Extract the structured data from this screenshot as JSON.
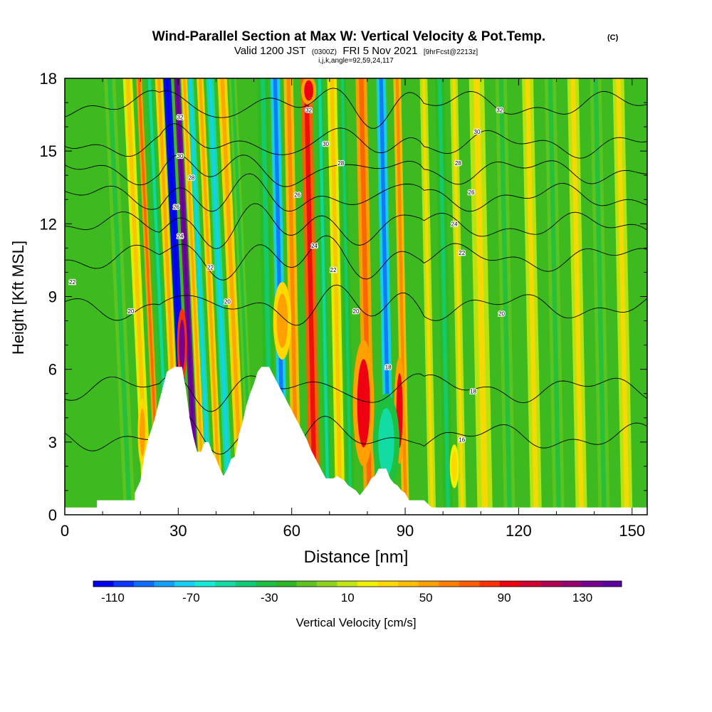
{
  "chart_data": {
    "type": "heatmap",
    "title": "Wind-Parallel Section at Max W: Vertical Velocity & Pot.Temp.",
    "title_mark": "(C)",
    "subtitle_main": "Valid 1200 JST",
    "subtitle_z": "(0300Z)",
    "subtitle_date": "FRI 5 Nov 2021",
    "subtitle_fcst": "[9hrFcst@2213z]",
    "subtitle_ijk": "i,j,k,angle=92,59,24,117",
    "xlabel": "Distance [nm]",
    "ylabel": "Height [Kft MSL]",
    "xlim": [
      0,
      154
    ],
    "ylim": [
      0,
      18
    ],
    "x_ticks": [
      "0",
      "30",
      "60",
      "90",
      "120",
      "150"
    ],
    "x_tick_values": [
      0,
      30,
      60,
      90,
      120,
      150
    ],
    "y_ticks": [
      "0",
      "3",
      "6",
      "9",
      "12",
      "15",
      "18"
    ],
    "y_tick_values": [
      0,
      3,
      6,
      9,
      12,
      15,
      18
    ],
    "background_color": "#3cba20",
    "terrain_profile": [
      [
        0,
        0.3
      ],
      [
        8.5,
        0.3
      ],
      [
        8.5,
        0.6
      ],
      [
        18.5,
        0.6
      ],
      [
        18.5,
        0.9
      ],
      [
        20,
        1.4
      ],
      [
        21,
        2.4
      ],
      [
        22,
        3.1
      ],
      [
        23.5,
        3.8
      ],
      [
        25,
        4.7
      ],
      [
        26,
        5.3
      ],
      [
        27,
        5.9
      ],
      [
        29,
        6.1
      ],
      [
        31,
        6.1
      ],
      [
        32,
        5.2
      ],
      [
        33,
        4.0
      ],
      [
        34,
        3.2
      ],
      [
        35,
        2.6
      ],
      [
        36,
        2.6
      ],
      [
        37,
        3.0
      ],
      [
        38,
        3.0
      ],
      [
        39,
        2.6
      ],
      [
        40,
        2.3
      ],
      [
        41,
        1.9
      ],
      [
        42,
        1.6
      ],
      [
        43,
        1.9
      ],
      [
        44,
        2.3
      ],
      [
        45,
        2.4
      ],
      [
        46,
        3.3
      ],
      [
        47,
        3.8
      ],
      [
        48,
        4.5
      ],
      [
        49,
        5.0
      ],
      [
        50,
        5.4
      ],
      [
        51,
        5.9
      ],
      [
        52,
        6.1
      ],
      [
        54,
        6.1
      ],
      [
        55,
        5.8
      ],
      [
        56,
        5.5
      ],
      [
        57,
        5.2
      ],
      [
        58,
        4.9
      ],
      [
        59,
        4.6
      ],
      [
        60,
        4.3
      ],
      [
        61,
        4.0
      ],
      [
        62,
        3.7
      ],
      [
        63,
        3.4
      ],
      [
        64,
        3.1
      ],
      [
        65,
        2.7
      ],
      [
        66,
        2.4
      ],
      [
        67,
        2.1
      ],
      [
        68,
        1.8
      ],
      [
        69,
        1.5
      ],
      [
        70,
        1.5
      ],
      [
        71,
        1.5
      ],
      [
        72,
        1.6
      ],
      [
        73,
        1.5
      ],
      [
        74,
        1.4
      ],
      [
        75,
        1.2
      ],
      [
        76,
        1.1
      ],
      [
        77,
        1.0
      ],
      [
        78,
        0.8
      ],
      [
        79,
        1.0
      ],
      [
        80,
        1.2
      ],
      [
        81,
        1.5
      ],
      [
        82,
        1.6
      ],
      [
        83,
        1.9
      ],
      [
        84,
        1.9
      ],
      [
        85,
        1.9
      ],
      [
        86,
        1.5
      ],
      [
        87,
        1.3
      ],
      [
        88,
        1.2
      ],
      [
        89,
        1.0
      ],
      [
        90,
        0.9
      ],
      [
        91,
        0.6
      ],
      [
        93,
        0.6
      ],
      [
        95,
        0.6
      ],
      [
        97,
        0.3
      ],
      [
        154,
        0.3
      ]
    ],
    "w_bands": [
      {
        "x": 13,
        "width": 3,
        "value": -10
      },
      {
        "x": 18,
        "width": 2.5,
        "value": 20
      },
      {
        "x": 21.5,
        "width": 1.5,
        "value": 50
      },
      {
        "x": 24,
        "width": 2,
        "value": -30
      },
      {
        "x": 26.5,
        "width": 2,
        "value": 30
      },
      {
        "x": 28.7,
        "width": 2.0,
        "value": -110
      },
      {
        "x": 31.5,
        "width": 1.6,
        "value": 130
      },
      {
        "x": 33.4,
        "width": 1.6,
        "value": 30
      },
      {
        "x": 35,
        "width": 1.6,
        "value": -50
      },
      {
        "x": 37.5,
        "width": 1.8,
        "value": 30
      },
      {
        "x": 40,
        "width": 2,
        "value": -50
      },
      {
        "x": 43,
        "width": 2.5,
        "value": 30
      },
      {
        "x": 46,
        "width": 2,
        "value": -10
      },
      {
        "x": 52,
        "width": 3,
        "value": -20
      },
      {
        "x": 55.5,
        "width": 2.5,
        "value": -70
      },
      {
        "x": 59,
        "width": 2.5,
        "value": 40
      },
      {
        "x": 63.5,
        "width": 3,
        "value": 70
      },
      {
        "x": 67.5,
        "width": 2,
        "value": -30
      },
      {
        "x": 70.5,
        "width": 2.5,
        "value": 20
      },
      {
        "x": 73.5,
        "width": 2,
        "value": -20
      },
      {
        "x": 78,
        "width": 3,
        "value": 50
      },
      {
        "x": 83.5,
        "width": 2.5,
        "value": -70
      },
      {
        "x": 88,
        "width": 2,
        "value": 40
      },
      {
        "x": 95,
        "width": 2,
        "value": 10
      },
      {
        "x": 99,
        "width": 2.5,
        "value": -20
      },
      {
        "x": 103,
        "width": 2,
        "value": 10
      },
      {
        "x": 108,
        "width": 4,
        "value": 10
      },
      {
        "x": 115,
        "width": 3,
        "value": -10
      },
      {
        "x": 122,
        "width": 3,
        "value": 10
      },
      {
        "x": 128,
        "width": 3,
        "value": -10
      },
      {
        "x": 134,
        "width": 3,
        "value": 10
      },
      {
        "x": 140,
        "width": 3,
        "value": -10
      },
      {
        "x": 146,
        "width": 3,
        "value": 10
      }
    ],
    "w_blobs": [
      {
        "x": 31.0,
        "y": 7.0,
        "rx": 1.3,
        "ry": 1.5,
        "value": 130
      },
      {
        "x": 57.5,
        "y": 8.0,
        "rx": 2.4,
        "ry": 1.6,
        "value": 50
      },
      {
        "x": 79,
        "y": 4.6,
        "rx": 2.8,
        "ry": 2.6,
        "value": 90
      },
      {
        "x": 88.5,
        "y": 4.3,
        "rx": 1.4,
        "ry": 2.2,
        "value": 90
      },
      {
        "x": 103,
        "y": 2.0,
        "rx": 1.2,
        "ry": 0.9,
        "value": 30
      },
      {
        "x": 20.5,
        "y": 3.4,
        "rx": 1.2,
        "ry": 1.4,
        "value": 50
      },
      {
        "x": 64.5,
        "y": 17.5,
        "rx": 2.0,
        "ry": 0.6,
        "value": 90
      },
      {
        "x": 85,
        "y": 3.0,
        "rx": 3.5,
        "ry": 2.0,
        "value": -50
      }
    ],
    "theta_levels": [
      {
        "label": "16",
        "base": 3.2
      },
      {
        "label": "18",
        "base": 5.2
      },
      {
        "label": "20",
        "base": 8.6
      },
      {
        "label": "22",
        "base": 10.6
      },
      {
        "label": "24",
        "base": 11.9
      },
      {
        "label": "26",
        "base": 13.1
      },
      {
        "label": "28",
        "base": 14.2
      },
      {
        "label": "30",
        "base": 15.3
      },
      {
        "label": "32",
        "base": 16.9
      }
    ],
    "theta_labels": [
      {
        "text": "22",
        "x": 2,
        "y": 9.6
      },
      {
        "text": "20",
        "x": 17.5,
        "y": 8.4
      },
      {
        "text": "32",
        "x": 30.5,
        "y": 16.4
      },
      {
        "text": "30",
        "x": 30.5,
        "y": 14.8
      },
      {
        "text": "28",
        "x": 33.5,
        "y": 13.9
      },
      {
        "text": "26",
        "x": 29.5,
        "y": 12.7
      },
      {
        "text": "24",
        "x": 30.5,
        "y": 11.5
      },
      {
        "text": "22",
        "x": 38.5,
        "y": 10.2
      },
      {
        "text": "20",
        "x": 43,
        "y": 8.8
      },
      {
        "text": "32",
        "x": 64.5,
        "y": 16.7
      },
      {
        "text": "30",
        "x": 69,
        "y": 15.3
      },
      {
        "text": "28",
        "x": 73,
        "y": 14.5
      },
      {
        "text": "26",
        "x": 61.5,
        "y": 13.2
      },
      {
        "text": "24",
        "x": 66,
        "y": 11.1
      },
      {
        "text": "22",
        "x": 71,
        "y": 10.1
      },
      {
        "text": "20",
        "x": 77,
        "y": 8.4
      },
      {
        "text": "18",
        "x": 85.5,
        "y": 6.1
      },
      {
        "text": "32",
        "x": 115,
        "y": 16.7
      },
      {
        "text": "30",
        "x": 109,
        "y": 15.8
      },
      {
        "text": "28",
        "x": 104,
        "y": 14.5
      },
      {
        "text": "26",
        "x": 107.5,
        "y": 13.3
      },
      {
        "text": "24",
        "x": 103,
        "y": 12.0
      },
      {
        "text": "22",
        "x": 105,
        "y": 10.8
      },
      {
        "text": "20",
        "x": 115.5,
        "y": 8.3
      },
      {
        "text": "18",
        "x": 108,
        "y": 5.1
      },
      {
        "text": "16",
        "x": 105,
        "y": 3.1
      }
    ],
    "colorbar": {
      "label": "Vertical Velocity [cm/s]",
      "tick_labels": [
        "-110",
        "-70",
        "-30",
        "10",
        "50",
        "90",
        "130"
      ],
      "tick_values": [
        -110,
        -70,
        -30,
        10,
        50,
        90,
        130
      ],
      "range": [
        -120,
        150
      ],
      "colors": [
        "#0000ee",
        "#0a36ff",
        "#0f6cff",
        "#12a0ff",
        "#14d0f4",
        "#14ecd8",
        "#12dca4",
        "#10cc78",
        "#1ec040",
        "#2cb823",
        "#5ec41e",
        "#8ed41e",
        "#c2e610",
        "#f0f000",
        "#ffd800",
        "#ffbe00",
        "#ffa000",
        "#ff8000",
        "#ff5c00",
        "#ff3000",
        "#ee0010",
        "#d40030",
        "#b40050",
        "#980070",
        "#780090",
        "#5c00a0"
      ]
    }
  }
}
